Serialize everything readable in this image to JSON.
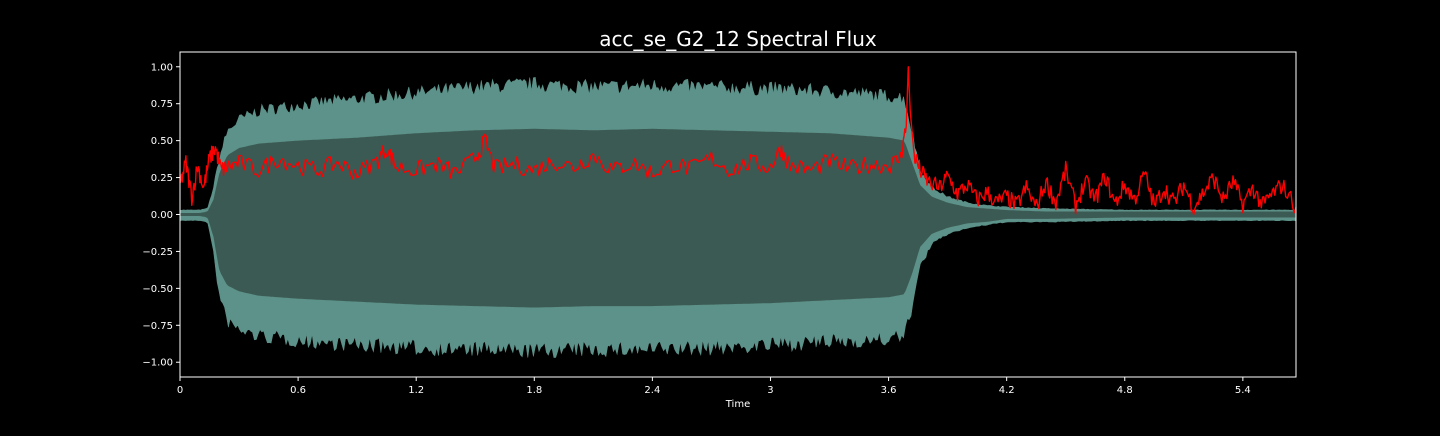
{
  "chart_data": {
    "type": "line",
    "title": "acc_se_G2_12 Spectral Flux",
    "xlabel": "Time",
    "ylabel": "",
    "xlim": [
      0,
      5.67
    ],
    "ylim": [
      -1.1,
      1.1
    ],
    "xticks": [
      0,
      0.6,
      1.2,
      1.8,
      2.4,
      3,
      3.6,
      4.2,
      4.8,
      5.4
    ],
    "xtick_labels": [
      "0",
      "0.6",
      "1.2",
      "1.8",
      "2.4",
      "3",
      "3.6",
      "4.2",
      "4.8",
      "5.4"
    ],
    "yticks": [
      1.0,
      0.75,
      0.5,
      0.25,
      0.0,
      -0.25,
      -0.5,
      -0.75,
      -1.0
    ],
    "ytick_labels": [
      "1.00",
      "0.75",
      "0.50",
      "0.25",
      "0.00",
      "−0.25",
      "−0.50",
      "−0.75",
      "−1.00"
    ],
    "grid": false,
    "legend": "none",
    "background": "#000000",
    "series": [
      {
        "kind": "waveform-envelope",
        "color": "#5c9289",
        "inner_color": "#3b5a53",
        "x": [
          0,
          0.1,
          0.14,
          0.17,
          0.2,
          0.24,
          0.3,
          0.4,
          0.6,
          0.9,
          1.2,
          1.5,
          1.8,
          2.1,
          2.4,
          2.7,
          3.0,
          3.3,
          3.6,
          3.68,
          3.72,
          3.76,
          3.82,
          3.9,
          4.0,
          4.1,
          4.2,
          4.4,
          4.8,
          5.2,
          5.6,
          5.67
        ],
        "upper": [
          0.03,
          0.03,
          0.04,
          0.18,
          0.38,
          0.56,
          0.64,
          0.7,
          0.74,
          0.78,
          0.82,
          0.86,
          0.88,
          0.86,
          0.87,
          0.86,
          0.85,
          0.83,
          0.8,
          0.79,
          0.55,
          0.3,
          0.18,
          0.12,
          0.08,
          0.06,
          0.05,
          0.04,
          0.03,
          0.03,
          0.03,
          0.03
        ],
        "inner_upper": [
          0.01,
          0.01,
          0.02,
          0.1,
          0.28,
          0.4,
          0.45,
          0.48,
          0.5,
          0.52,
          0.55,
          0.57,
          0.58,
          0.57,
          0.58,
          0.57,
          0.56,
          0.55,
          0.52,
          0.5,
          0.35,
          0.2,
          0.12,
          0.08,
          0.05,
          0.04,
          0.03,
          0.02,
          0.02,
          0.02,
          0.02,
          0.02
        ],
        "lower": [
          -0.04,
          -0.04,
          -0.05,
          -0.25,
          -0.55,
          -0.72,
          -0.78,
          -0.82,
          -0.85,
          -0.88,
          -0.9,
          -0.91,
          -0.92,
          -0.91,
          -0.91,
          -0.9,
          -0.88,
          -0.86,
          -0.84,
          -0.82,
          -0.62,
          -0.35,
          -0.2,
          -0.13,
          -0.09,
          -0.07,
          -0.05,
          -0.05,
          -0.04,
          -0.04,
          -0.04,
          -0.04
        ],
        "inner_lower": [
          -0.01,
          -0.01,
          -0.02,
          -0.15,
          -0.38,
          -0.48,
          -0.52,
          -0.55,
          -0.57,
          -0.59,
          -0.61,
          -0.62,
          -0.63,
          -0.62,
          -0.62,
          -0.61,
          -0.6,
          -0.58,
          -0.56,
          -0.54,
          -0.4,
          -0.22,
          -0.13,
          -0.09,
          -0.06,
          -0.05,
          -0.03,
          -0.03,
          -0.02,
          -0.02,
          -0.02,
          -0.02
        ]
      },
      {
        "kind": "line",
        "color": "#ff0000",
        "x": [
          0,
          0.03,
          0.06,
          0.09,
          0.12,
          0.15,
          0.18,
          0.21,
          0.24,
          0.3,
          0.4,
          0.5,
          0.6,
          0.7,
          0.8,
          0.9,
          1.0,
          1.05,
          1.1,
          1.2,
          1.3,
          1.4,
          1.5,
          1.55,
          1.6,
          1.7,
          1.8,
          1.9,
          2.0,
          2.1,
          2.2,
          2.3,
          2.4,
          2.5,
          2.6,
          2.7,
          2.8,
          2.9,
          3.0,
          3.05,
          3.1,
          3.2,
          3.3,
          3.4,
          3.5,
          3.6,
          3.66,
          3.69,
          3.7,
          3.71,
          3.73,
          3.76,
          3.8,
          3.86,
          3.9,
          3.95,
          4.0,
          4.05,
          4.1,
          4.15,
          4.2,
          4.25,
          4.3,
          4.35,
          4.4,
          4.45,
          4.5,
          4.55,
          4.6,
          4.65,
          4.7,
          4.75,
          4.8,
          4.85,
          4.9,
          4.95,
          5.0,
          5.05,
          5.1,
          5.15,
          5.2,
          5.25,
          5.3,
          5.35,
          5.4,
          5.45,
          5.5,
          5.55,
          5.6,
          5.67
        ],
        "y": [
          0.2,
          0.35,
          0.12,
          0.33,
          0.18,
          0.38,
          0.45,
          0.3,
          0.32,
          0.35,
          0.3,
          0.38,
          0.33,
          0.3,
          0.35,
          0.28,
          0.36,
          0.45,
          0.32,
          0.3,
          0.34,
          0.28,
          0.38,
          0.5,
          0.31,
          0.34,
          0.3,
          0.36,
          0.32,
          0.4,
          0.3,
          0.35,
          0.28,
          0.34,
          0.31,
          0.38,
          0.3,
          0.35,
          0.32,
          0.45,
          0.33,
          0.3,
          0.36,
          0.31,
          0.34,
          0.33,
          0.38,
          0.6,
          1.0,
          0.7,
          0.4,
          0.3,
          0.22,
          0.18,
          0.26,
          0.14,
          0.2,
          0.1,
          0.15,
          0.08,
          0.12,
          0.06,
          0.18,
          0.05,
          0.22,
          0.08,
          0.3,
          0.06,
          0.22,
          0.1,
          0.26,
          0.07,
          0.2,
          0.1,
          0.28,
          0.06,
          0.18,
          0.08,
          0.2,
          0.05,
          0.15,
          0.25,
          0.1,
          0.22,
          0.07,
          0.18,
          0.06,
          0.14,
          0.2,
          0.05
        ]
      }
    ]
  }
}
